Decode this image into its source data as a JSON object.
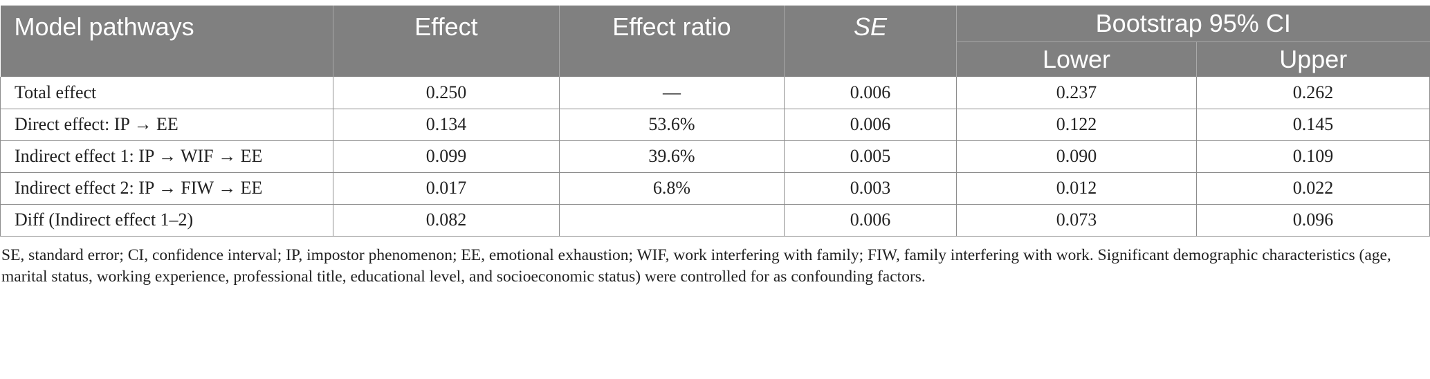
{
  "table": {
    "header": {
      "pathways": "Model pathways",
      "effect": "Effect",
      "ratio": "Effect ratio",
      "se": "SE",
      "ci_group": "Bootstrap 95% CI",
      "lower": "Lower",
      "upper": "Upper"
    },
    "rows": [
      {
        "pathway": "Total effect",
        "effect": "0.250",
        "ratio": "—",
        "se": "0.006",
        "lower": "0.237",
        "upper": "0.262"
      },
      {
        "pathway": "Direct effect: IP → EE",
        "effect": "0.134",
        "ratio": "53.6%",
        "se": "0.006",
        "lower": "0.122",
        "upper": "0.145"
      },
      {
        "pathway": "Indirect effect 1: IP → WIF → EE",
        "effect": "0.099",
        "ratio": "39.6%",
        "se": "0.005",
        "lower": "0.090",
        "upper": "0.109"
      },
      {
        "pathway": "Indirect effect 2: IP → FIW → EE",
        "effect": "0.017",
        "ratio": "6.8%",
        "se": "0.003",
        "lower": "0.012",
        "upper": "0.022"
      },
      {
        "pathway": "Diff (Indirect effect 1–2)",
        "effect": "0.082",
        "ratio": "",
        "se": "0.006",
        "lower": "0.073",
        "upper": "0.096"
      }
    ]
  },
  "footnote": "SE, standard error; CI, confidence interval; IP, impostor phenomenon; EE, emotional exhaustion; WIF, work interfering with family; FIW, family interfering with work. Significant demographic characteristics (age, marital status, working experience, professional title, educational level, and socioeconomic status) were controlled for as confounding factors."
}
